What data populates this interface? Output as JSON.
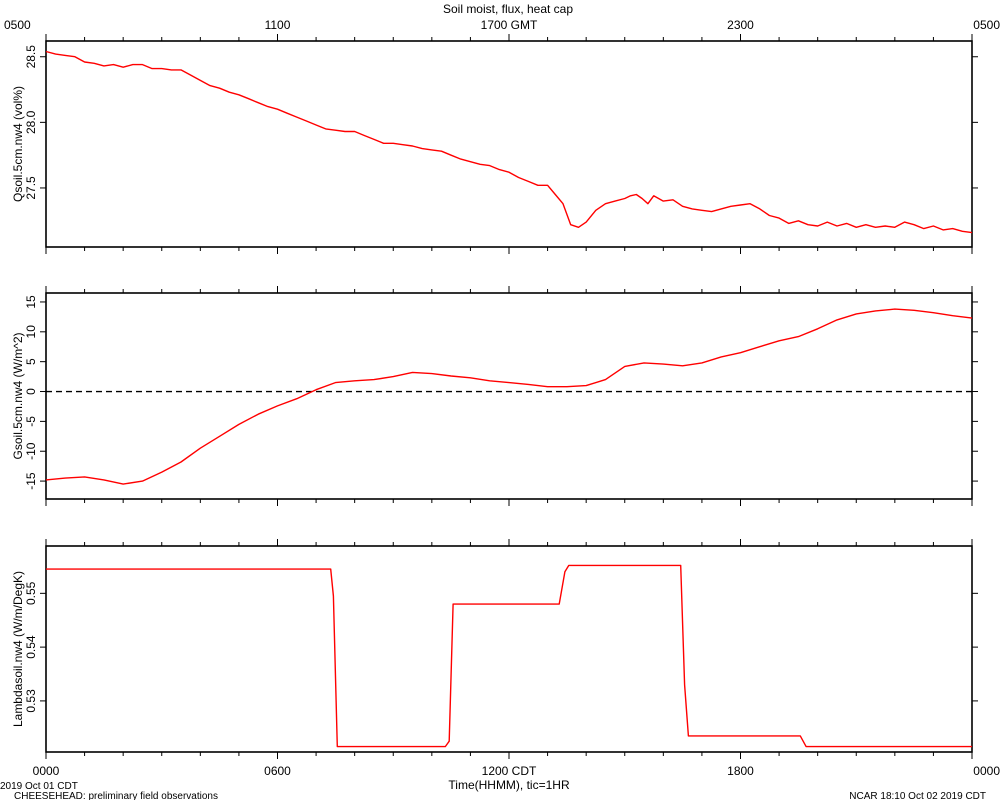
{
  "chart_data": [
    {
      "type": "line",
      "ylabel": "Qsoil.5cm.nw4 (vol%)",
      "ylim": [
        27.05,
        28.62
      ],
      "yticks": [
        27.5,
        28.0,
        28.5
      ],
      "ytick_labels": [
        "27.5",
        "28.0",
        "28.5"
      ],
      "series": [
        {
          "color": "#ff0000",
          "x": [
            0,
            0.25,
            0.5,
            0.75,
            1.0,
            1.25,
            1.5,
            1.75,
            2.0,
            2.25,
            2.5,
            2.75,
            3.0,
            3.25,
            3.5,
            3.75,
            4.0,
            4.25,
            4.5,
            4.75,
            5.0,
            5.25,
            5.5,
            5.75,
            6.0,
            6.25,
            6.5,
            6.75,
            7.0,
            7.25,
            7.5,
            7.75,
            8.0,
            8.25,
            8.5,
            8.75,
            9.0,
            9.25,
            9.5,
            9.75,
            10.0,
            10.25,
            10.5,
            10.75,
            11.0,
            11.25,
            11.5,
            11.75,
            12.0,
            12.25,
            12.5,
            12.75,
            13.0,
            13.2,
            13.4,
            13.6,
            13.8,
            14.0,
            14.25,
            14.5,
            14.75,
            15.0,
            15.15,
            15.3,
            15.45,
            15.6,
            15.75,
            16.0,
            16.25,
            16.5,
            16.75,
            17.0,
            17.25,
            17.5,
            17.75,
            18.0,
            18.25,
            18.5,
            18.75,
            19.0,
            19.25,
            19.5,
            19.75,
            20.0,
            20.25,
            20.5,
            20.75,
            21.0,
            21.25,
            21.5,
            21.75,
            22.0,
            22.25,
            22.5,
            22.75,
            23.0,
            23.25,
            23.5,
            23.75,
            24.0
          ],
          "y": [
            28.54,
            28.52,
            28.51,
            28.5,
            28.46,
            28.45,
            28.43,
            28.44,
            28.42,
            28.44,
            28.44,
            28.41,
            28.41,
            28.4,
            28.4,
            28.36,
            28.32,
            28.28,
            28.26,
            28.23,
            28.21,
            28.18,
            28.15,
            28.12,
            28.1,
            28.07,
            28.04,
            28.01,
            27.98,
            27.95,
            27.94,
            27.93,
            27.93,
            27.9,
            27.87,
            27.84,
            27.84,
            27.83,
            27.82,
            27.8,
            27.79,
            27.78,
            27.75,
            27.72,
            27.7,
            27.68,
            27.67,
            27.64,
            27.62,
            27.58,
            27.55,
            27.52,
            27.52,
            27.45,
            27.38,
            27.22,
            27.2,
            27.24,
            27.33,
            27.38,
            27.4,
            27.42,
            27.44,
            27.45,
            27.42,
            27.38,
            27.44,
            27.4,
            27.41,
            27.36,
            27.34,
            27.33,
            27.32,
            27.34,
            27.36,
            27.37,
            27.38,
            27.34,
            27.29,
            27.27,
            27.23,
            27.25,
            27.22,
            27.21,
            27.24,
            27.21,
            27.23,
            27.2,
            27.22,
            27.2,
            27.21,
            27.2,
            27.24,
            27.22,
            27.19,
            27.21,
            27.18,
            27.19,
            27.17,
            27.16
          ]
        }
      ]
    },
    {
      "type": "line",
      "ylabel": "Gsoil.5cm.nw4 (W/m^2)",
      "ylim": [
        -18,
        16.5
      ],
      "yticks": [
        -15,
        -10,
        -5,
        0,
        5,
        10,
        15
      ],
      "ytick_labels": [
        "-15",
        "-10",
        "-5",
        "0",
        "5",
        "10",
        "15"
      ],
      "reference_line": {
        "y": 0,
        "style": "dashed",
        "color": "#000000"
      },
      "series": [
        {
          "color": "#ff0000",
          "x": [
            0,
            0.5,
            1.0,
            1.5,
            2.0,
            2.5,
            3.0,
            3.5,
            4.0,
            4.5,
            5.0,
            5.5,
            6.0,
            6.5,
            7.0,
            7.5,
            8.0,
            8.5,
            9.0,
            9.5,
            10.0,
            10.5,
            11.0,
            11.5,
            12.0,
            12.5,
            13.0,
            13.5,
            14.0,
            14.5,
            15.0,
            15.5,
            16.0,
            16.5,
            17.0,
            17.5,
            18.0,
            18.5,
            19.0,
            19.5,
            20.0,
            20.5,
            21.0,
            21.5,
            22.0,
            22.5,
            23.0,
            23.5,
            24.0
          ],
          "y": [
            -14.8,
            -14.5,
            -14.3,
            -14.8,
            -15.5,
            -15.0,
            -13.5,
            -11.8,
            -9.5,
            -7.5,
            -5.5,
            -3.8,
            -2.4,
            -1.2,
            0.3,
            1.5,
            1.8,
            2.0,
            2.5,
            3.2,
            3.0,
            2.6,
            2.3,
            1.8,
            1.5,
            1.2,
            0.8,
            0.8,
            1.0,
            2.0,
            4.2,
            4.8,
            4.6,
            4.3,
            4.8,
            5.8,
            6.5,
            7.5,
            8.5,
            9.2,
            10.5,
            12.0,
            13.0,
            13.5,
            13.8,
            13.6,
            13.2,
            12.7,
            12.3
          ]
        }
      ]
    },
    {
      "type": "line",
      "ylabel": "Lambdasoil.nw4 (W/m/DegK)",
      "ylim": [
        0.5205,
        0.5588
      ],
      "yticks": [
        0.53,
        0.54,
        0.55
      ],
      "ytick_labels": [
        "0.53",
        "0.54",
        "0.55"
      ],
      "series": [
        {
          "color": "#ff0000",
          "x": [
            0,
            7.38,
            7.45,
            7.55,
            10.35,
            10.45,
            10.55,
            13.3,
            13.45,
            13.55,
            16.45,
            16.55,
            16.65,
            19.55,
            19.7,
            24.0
          ],
          "y": [
            0.5545,
            0.5545,
            0.5495,
            0.5215,
            0.5215,
            0.5225,
            0.548,
            0.548,
            0.554,
            0.5552,
            0.5552,
            0.533,
            0.5235,
            0.5235,
            0.5215,
            0.5215
          ]
        }
      ]
    }
  ],
  "shared": {
    "title": "Soil moist, flux, heat cap",
    "xlim": [
      0,
      24
    ],
    "bottom_ticks": [
      0,
      6,
      12,
      18,
      24
    ],
    "bottom_tick_labels": [
      "0000",
      "0600",
      "1200 CDT",
      "1800",
      "0000"
    ],
    "top_ticks": [
      0,
      6,
      12,
      18,
      24
    ],
    "top_tick_labels": [
      "0500",
      "1100",
      "1700 GMT",
      "2300",
      "0500"
    ],
    "xlabel": "Time(HHMM), tic=1HR",
    "minor_tick_step": 1
  },
  "footer": {
    "date": "2019 Oct 01 CDT",
    "project": "CHEESEHEAD: preliminary field observations",
    "stamp": "NCAR 18:10 Oct 02 2019 CDT"
  }
}
